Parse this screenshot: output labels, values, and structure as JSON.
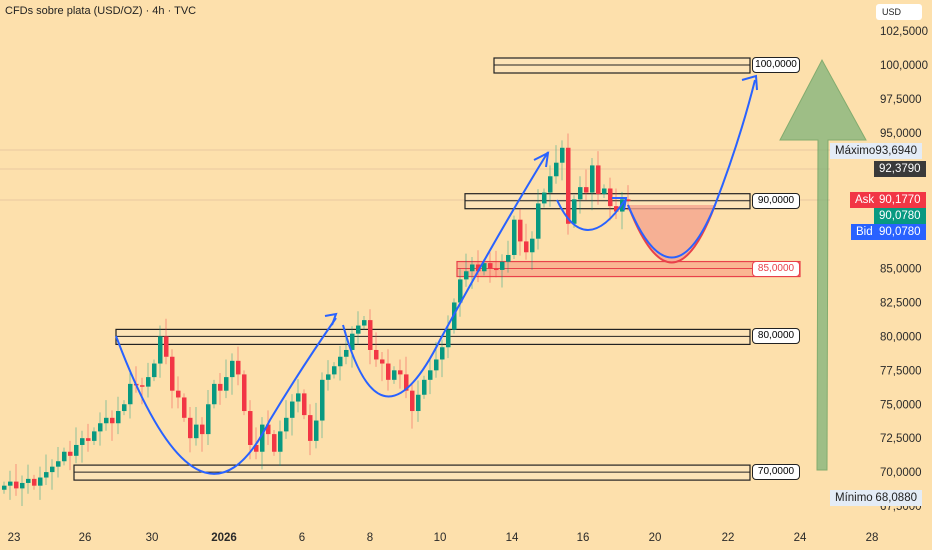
{
  "header": {
    "title": "CFDs sobre plata (USD/OZ) · 4h · TVC",
    "currency": "USD"
  },
  "chart_data": {
    "type": "candlestick",
    "title": "CFDs sobre plata (USD/OZ) · 4h · TVC",
    "ylim": [
      67.5,
      102.5
    ],
    "y_ticks": [
      "102,5000",
      "100,0000",
      "97,5000",
      "95,0000",
      "85,0000",
      "82,5000",
      "80,0000",
      "77,5000",
      "75,0000",
      "72,5000",
      "70,0000",
      "67,5000"
    ],
    "y_tick_values": [
      102.5,
      100,
      97.5,
      95,
      85,
      82.5,
      80,
      77.5,
      75,
      72.5,
      70,
      67.5
    ],
    "x_ticks": [
      {
        "label": "23",
        "bold": false
      },
      {
        "label": "26",
        "bold": false
      },
      {
        "label": "30",
        "bold": false
      },
      {
        "label": "2026",
        "bold": true
      },
      {
        "label": "6",
        "bold": false
      },
      {
        "label": "8",
        "bold": false
      },
      {
        "label": "10",
        "bold": false
      },
      {
        "label": "14",
        "bold": false
      },
      {
        "label": "16",
        "bold": false
      },
      {
        "label": "20",
        "bold": false
      },
      {
        "label": "22",
        "bold": false
      },
      {
        "label": "24",
        "bold": false
      },
      {
        "label": "28",
        "bold": false
      }
    ],
    "closes": [
      69,
      69.3,
      68.8,
      69.2,
      69.5,
      69,
      69.6,
      70,
      70.4,
      70.8,
      71.5,
      71.2,
      72,
      72.5,
      72.3,
      73,
      73.6,
      74,
      73.6,
      74.5,
      75,
      76.5,
      76.4,
      76.3,
      77,
      78,
      80,
      78.5,
      76,
      75.5,
      74,
      72.5,
      73.5,
      72.8,
      75,
      76.5,
      76,
      77,
      78.2,
      77.2,
      74.5,
      72,
      71.5,
      73.5,
      72.8,
      71.5,
      73,
      74,
      75.2,
      75.8,
      74.2,
      72.3,
      73.8,
      76.8,
      77.2,
      77.8,
      78.5,
      79,
      80.2,
      80.8,
      81.2,
      79,
      78.3,
      78,
      76.8,
      77.5,
      77.2,
      76,
      74.5,
      75.7,
      76.8,
      77.5,
      78.3,
      79.2,
      80.5,
      82.5,
      84.2,
      84.8,
      85.3,
      84.8,
      85.4,
      85,
      84.9,
      85.5,
      86,
      88.6,
      87,
      86.2,
      87.2,
      89.8,
      90.6,
      91.8,
      92.8,
      93.9,
      88.3,
      90.1,
      91,
      90.6,
      92.6,
      90.5,
      90.9,
      89.6,
      89.2,
      90.1,
      90.08
    ],
    "levels": [
      {
        "value": 100,
        "label": "100,0000"
      },
      {
        "value": 90,
        "label": "90,0000"
      },
      {
        "value": 85,
        "label": "85,0000",
        "color": "#e8414a"
      },
      {
        "value": 80,
        "label": "80,0000"
      },
      {
        "value": 70,
        "label": "70,0000"
      }
    ],
    "price_tags": {
      "max": {
        "label": "Máximo",
        "value": "93,6940"
      },
      "last": {
        "value": "92,3790"
      },
      "ask": {
        "label": "Ask",
        "value": "90,1770"
      },
      "close": {
        "value": "90,0780"
      },
      "bid": {
        "label": "Bid",
        "value": "90,0780"
      },
      "min": {
        "label": "Mínimo",
        "value": "68,0880"
      }
    },
    "colors": {
      "up": "#089981",
      "down": "#f23645",
      "curve": "#2962ff",
      "arrow": "#5aa55a",
      "bg": "#fde0ac"
    }
  }
}
